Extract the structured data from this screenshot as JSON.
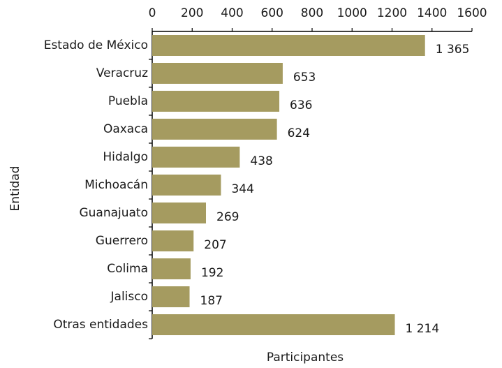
{
  "chart_data": {
    "type": "bar",
    "orientation": "horizontal",
    "xlabel": "Participantes",
    "ylabel": "Entidad",
    "categories": [
      "Estado de México",
      "Veracruz",
      "Puebla",
      "Oaxaca",
      "Hidalgo",
      "Michoacán",
      "Guanajuato",
      "Guerrero",
      "Colima",
      "Jalisco",
      "Otras entidades"
    ],
    "values": [
      1365,
      653,
      636,
      624,
      438,
      344,
      269,
      207,
      192,
      187,
      1214
    ],
    "value_labels": [
      "1 365",
      "653",
      "636",
      "624",
      "438",
      "344",
      "269",
      "207",
      "192",
      "187",
      "1 214"
    ],
    "color": "#a59b60",
    "xlim": [
      0,
      1600
    ],
    "xticks": [
      0,
      200,
      400,
      600,
      800,
      1000,
      1200,
      1400,
      1600
    ]
  }
}
